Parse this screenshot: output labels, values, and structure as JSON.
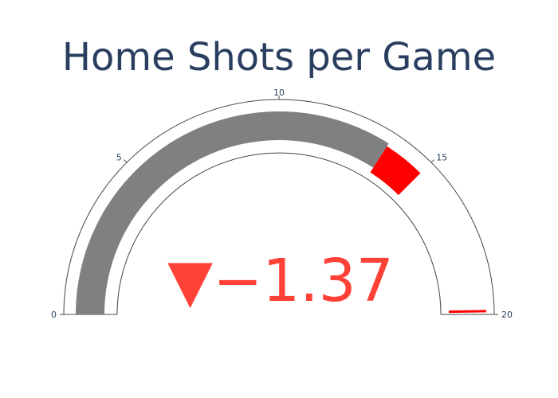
{
  "chart_data": {
    "type": "gauge",
    "title": "Home Shots per Game",
    "range": [
      0,
      20
    ],
    "tick_values": [
      0,
      5,
      10,
      15,
      20
    ],
    "tick_labels": [
      "0",
      "5",
      "10",
      "15",
      "20"
    ],
    "value": 13.63,
    "reference": 15.0,
    "delta": {
      "text": "▼−1.37",
      "value": -1.37,
      "direction": "decreasing",
      "color": "#ff4136"
    },
    "bar_color": "#808080",
    "step": {
      "range": [
        13.63,
        15.0
      ],
      "color": "#ff0000"
    },
    "threshold": {
      "value": 19.9,
      "color": "#ff0000"
    },
    "border_color": "#444444"
  }
}
